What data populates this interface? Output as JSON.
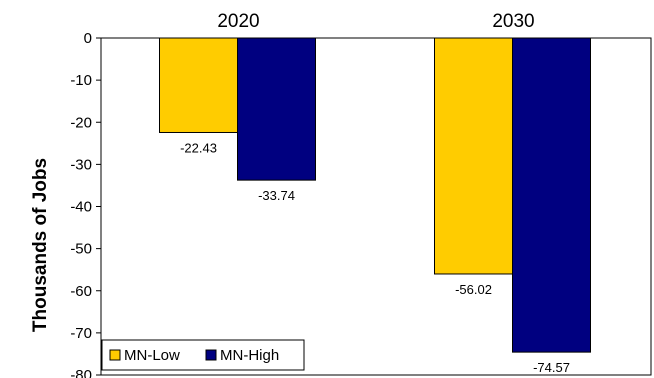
{
  "chart_data": {
    "type": "bar",
    "categories": [
      "2020",
      "2030"
    ],
    "series": [
      {
        "name": "MN-Low",
        "values": [
          -22.43,
          -56.02
        ],
        "color": "#FFCC00"
      },
      {
        "name": "MN-High",
        "values": [
          -33.74,
          -74.57
        ],
        "color": "#000080"
      }
    ],
    "data_labels": [
      [
        "-22.43",
        "-56.02"
      ],
      [
        "-33.74",
        "-74.57"
      ]
    ],
    "ylabel": "Thousands of Jobs",
    "ylim": [
      -80,
      0
    ],
    "yticks": [
      "0",
      "-10",
      "-20",
      "-30",
      "-40",
      "-50",
      "-60",
      "-70",
      "-80"
    ],
    "category_axis_position": "top",
    "legend_position": "bottom-left",
    "grid": false
  }
}
